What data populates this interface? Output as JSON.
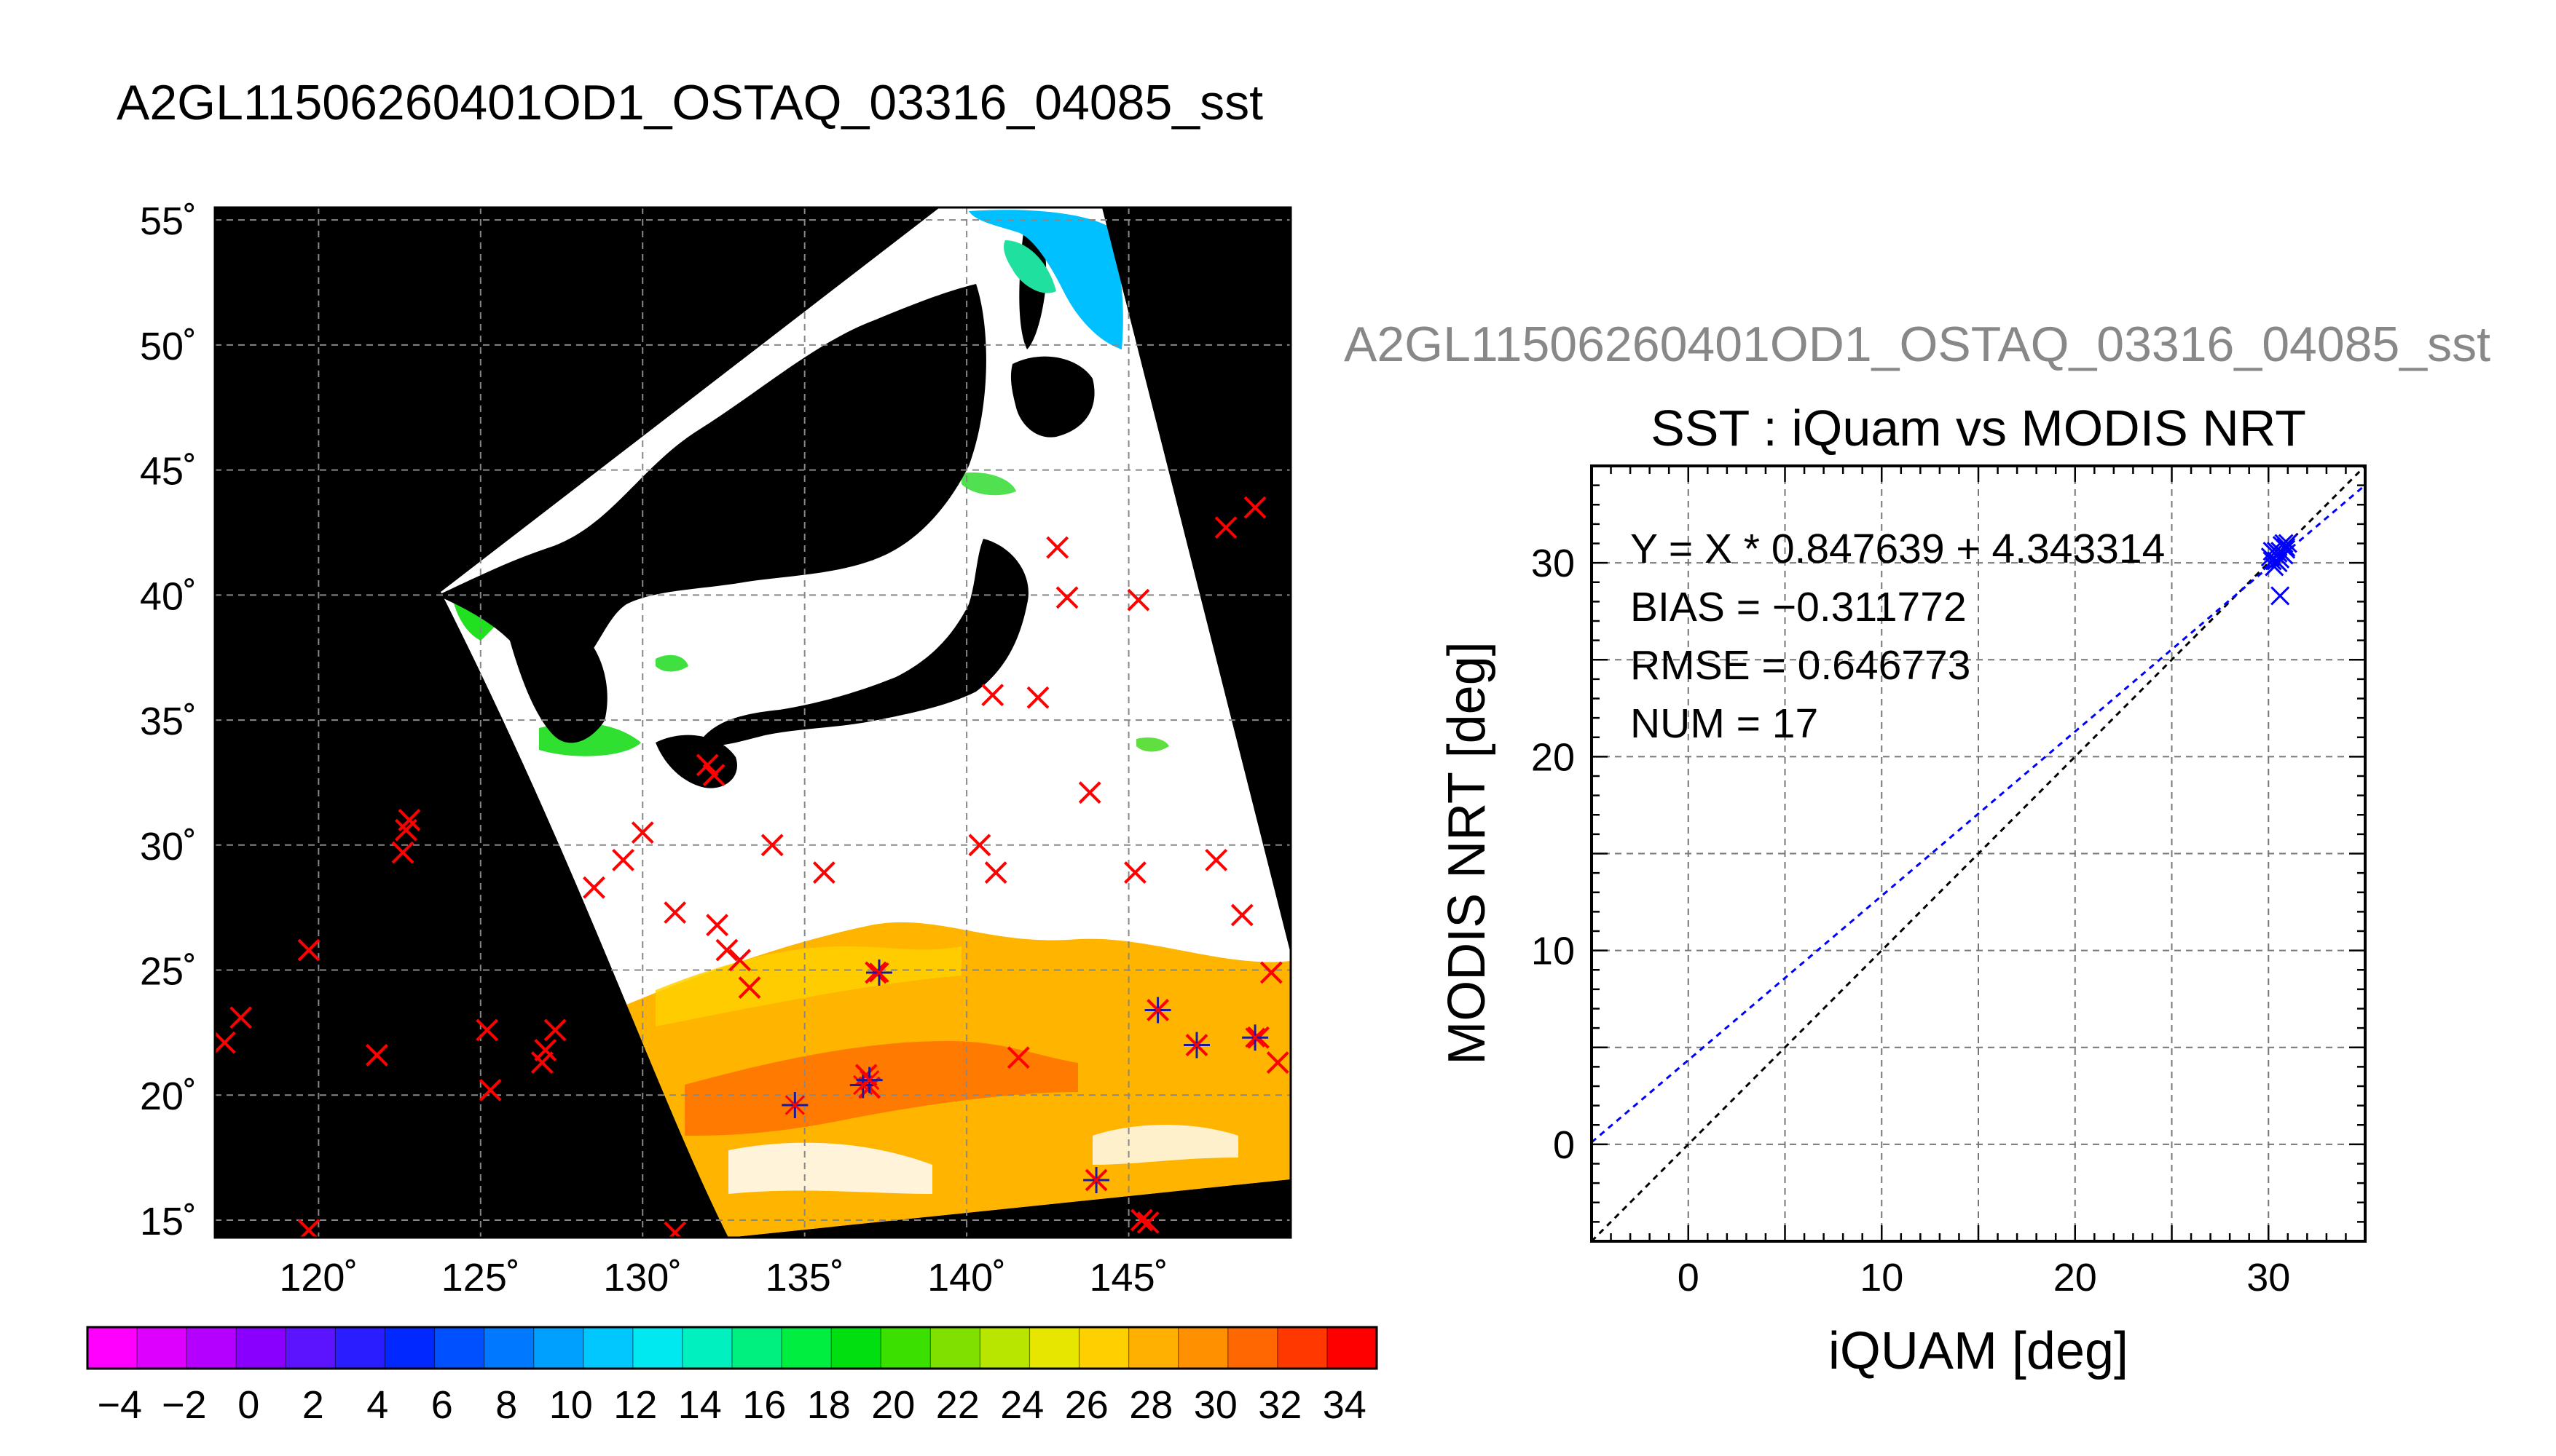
{
  "chart_data": [
    {
      "type": "heatmap",
      "title": "A2GL11506260401OD1_OSTAQ_03316_04085_sst",
      "x_tick_labels": [
        "120˚",
        "125˚",
        "130˚",
        "135˚",
        "140˚",
        "145˚"
      ],
      "y_tick_labels": [
        "15˚",
        "20˚",
        "25˚",
        "30˚",
        "35˚",
        "40˚",
        "45˚",
        "50˚",
        "55˚"
      ],
      "x_ticks": [
        120,
        125,
        130,
        135,
        140,
        145
      ],
      "y_ticks": [
        15,
        20,
        25,
        30,
        35,
        40,
        45,
        50,
        55
      ],
      "xlim": [
        116.8,
        150
      ],
      "ylim": [
        14.3,
        55.5
      ],
      "grid": true,
      "colorbar": {
        "range": [
          -5,
          35
        ],
        "tick_labels": [
          "−4",
          "−2",
          "0",
          "2",
          "4",
          "6",
          "8",
          "10",
          "12",
          "14",
          "16",
          "18",
          "20",
          "22",
          "24",
          "26",
          "28",
          "30",
          "32",
          "34"
        ],
        "colors": [
          "#ff00ff",
          "#dd00ff",
          "#b300ff",
          "#8a00ff",
          "#5c14ff",
          "#2a1dff",
          "#0028ff",
          "#0050ff",
          "#0078ff",
          "#00a0ff",
          "#00c8ff",
          "#00e8f0",
          "#00f0c0",
          "#00f080",
          "#00ee40",
          "#00e010",
          "#3ce000",
          "#80e000",
          "#b8e600",
          "#e6e600",
          "#ffd000",
          "#ffb000",
          "#ff9000",
          "#ff6800",
          "#ff3800",
          "#ff0000"
        ]
      },
      "markers_red_x": [
        [
          117.1,
          22.1
        ],
        [
          117.6,
          23.1
        ],
        [
          119.7,
          25.8
        ],
        [
          119.7,
          14.6
        ],
        [
          121.8,
          21.6
        ],
        [
          122.6,
          29.7
        ],
        [
          122.7,
          30.6
        ],
        [
          122.8,
          31.0
        ],
        [
          125.2,
          22.6
        ],
        [
          125.3,
          20.2
        ],
        [
          126.9,
          21.3
        ],
        [
          127.0,
          21.8
        ],
        [
          127.3,
          22.6
        ],
        [
          128.5,
          28.3
        ],
        [
          129.4,
          29.4
        ],
        [
          130.0,
          30.5
        ],
        [
          131.0,
          14.5
        ],
        [
          131.0,
          27.3
        ],
        [
          132.0,
          33.2
        ],
        [
          132.2,
          32.8
        ],
        [
          132.3,
          26.8
        ],
        [
          132.6,
          25.8
        ],
        [
          133.0,
          25.4
        ],
        [
          133.3,
          24.3
        ],
        [
          134.0,
          30.0
        ],
        [
          135.6,
          28.9
        ],
        [
          136.9,
          20.8
        ],
        [
          137.0,
          20.3
        ],
        [
          137.2,
          24.9
        ],
        [
          140.4,
          30.0
        ],
        [
          140.9,
          28.9
        ],
        [
          140.8,
          36.0
        ],
        [
          141.6,
          21.5
        ],
        [
          142.2,
          35.9
        ],
        [
          142.8,
          41.9
        ],
        [
          143.1,
          39.9
        ],
        [
          143.8,
          32.1
        ],
        [
          144.0,
          16.6
        ],
        [
          145.2,
          28.9
        ],
        [
          145.3,
          39.8
        ],
        [
          145.4,
          15.0
        ],
        [
          145.6,
          14.9
        ],
        [
          145.9,
          23.4
        ],
        [
          147.1,
          22.0
        ],
        [
          147.7,
          29.4
        ],
        [
          148.0,
          42.7
        ],
        [
          148.5,
          27.2
        ],
        [
          148.9,
          43.5
        ],
        [
          149.0,
          22.3
        ],
        [
          149.4,
          24.9
        ],
        [
          149.6,
          21.3
        ]
      ],
      "markers_blue_star": [
        [
          134.7,
          19.6
        ],
        [
          136.8,
          20.4
        ],
        [
          137.0,
          20.6
        ],
        [
          137.3,
          24.9
        ],
        [
          144.0,
          16.6
        ],
        [
          145.9,
          23.4
        ],
        [
          147.1,
          22.0
        ],
        [
          148.9,
          22.3
        ]
      ]
    },
    {
      "type": "scatter",
      "title": "SST : iQuam vs MODIS NRT",
      "header_label": "A2GL11506260401OD1_OSTAQ_03316_04085_sst",
      "xlabel": "iQUAM [deg]",
      "ylabel": "MODIS NRT [deg]",
      "xlim": [
        -5,
        35
      ],
      "ylim": [
        -5,
        35
      ],
      "x_ticks": [
        0,
        10,
        20,
        30
      ],
      "y_ticks": [
        0,
        10,
        20,
        30
      ],
      "x_tick_labels": [
        "0",
        "10",
        "20",
        "30"
      ],
      "y_tick_labels": [
        "0",
        "10",
        "20",
        "30"
      ],
      "grid": true,
      "annotations": [
        "Y = X * 0.847639 + 4.343314",
        "BIAS = −0.311772",
        "RMSE = 0.646773",
        "NUM = 17"
      ],
      "fit": {
        "slope": 0.847639,
        "intercept": 4.343314,
        "color": "#0000ff"
      },
      "identity_line_color": "#000000",
      "marker_color": "#0000ff",
      "points": [
        [
          30.1,
          30.3
        ],
        [
          30.2,
          30.1
        ],
        [
          30.3,
          29.8
        ],
        [
          30.4,
          30.1
        ],
        [
          30.5,
          30.5
        ],
        [
          30.5,
          30.0
        ],
        [
          30.6,
          30.6
        ],
        [
          30.6,
          30.2
        ],
        [
          30.7,
          30.9
        ],
        [
          30.8,
          30.4
        ],
        [
          30.8,
          31.0
        ],
        [
          30.9,
          30.7
        ],
        [
          31.0,
          31.0
        ],
        [
          30.4,
          30.6
        ],
        [
          30.2,
          30.6
        ],
        [
          30.9,
          30.8
        ],
        [
          30.6,
          28.3
        ]
      ]
    }
  ]
}
